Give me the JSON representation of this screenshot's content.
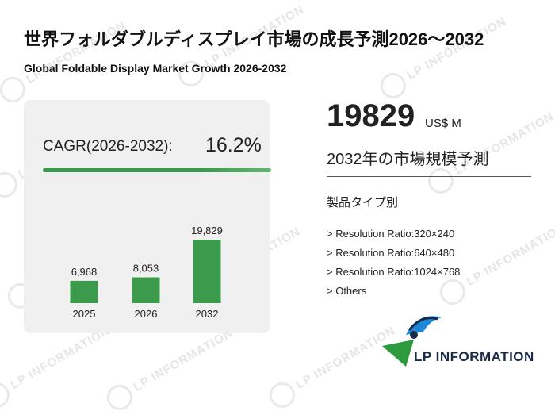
{
  "header": {
    "title": "世界フォルダブルディスプレイ市場の成長予測2026～2032",
    "subtitle": "Global Foldable Display Market Growth 2026-2032"
  },
  "cagr": {
    "label": "CAGR(2026-2032):",
    "value": "16.2%"
  },
  "chart_data": {
    "type": "bar",
    "categories": [
      "2025",
      "2026",
      "2032"
    ],
    "values": [
      6968,
      8053,
      19829
    ],
    "value_labels": [
      "6,968",
      "8,053",
      "19,829"
    ],
    "bar_color": "#3c9a4c"
  },
  "summary": {
    "value": "19829",
    "unit": "US$ M",
    "caption": "2032年の市場規模予測"
  },
  "segments": {
    "title": "製品タイプ別",
    "items": [
      "> Resolution Ratio:320×240",
      "> Resolution Ratio:640×480",
      "> Resolution Ratio:1024×768",
      "> Others"
    ]
  },
  "brand": {
    "logo_text": "LP INFORMATION",
    "watermark": "LP INFORMATION",
    "colors": {
      "navy": "#1a2a4a",
      "blue": "#1e88d8",
      "green": "#2e9a3e"
    },
    "logo_icon": "lp-information-logo-icon"
  }
}
